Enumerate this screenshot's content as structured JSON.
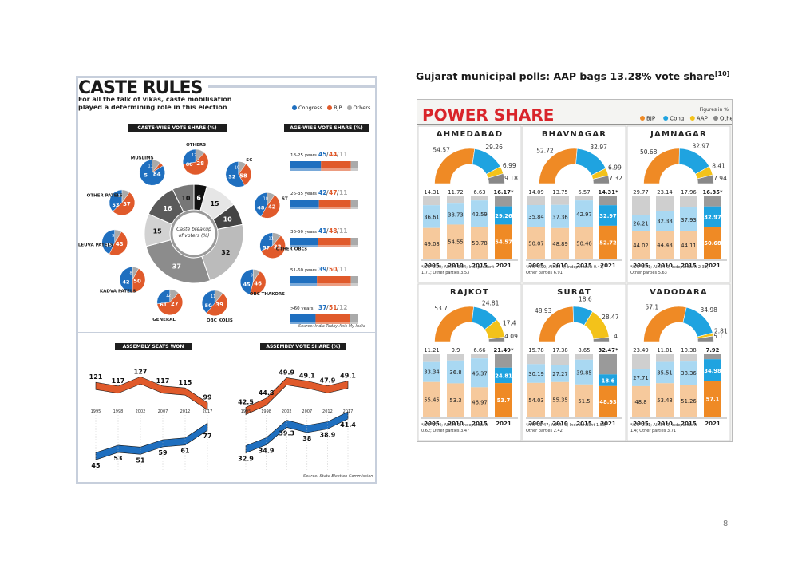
{
  "left": {
    "title": "CASTE RULES",
    "subtitle_lines": [
      "For all the talk of vikas, caste mobilisation",
      "played a determining role in this election"
    ],
    "legend": [
      {
        "label": "Congress",
        "color": "#1f6fbf"
      },
      {
        "label": "BJP",
        "color": "#e05a2b"
      },
      {
        "label": "Others",
        "color": "#aaaaaa"
      }
    ],
    "caste_header": "CASTE-WISE VOTE SHARE (%)",
    "age_header": "AGE-WISE VOTE SHARE (%)",
    "donut_label_lines": [
      "Caste breakup",
      "of voters (%)"
    ],
    "donut_segments": [
      6,
      15,
      10,
      32,
      37,
      15,
      16,
      10
    ],
    "castes": [
      {
        "name": "MUSLIMS",
        "congress": 84,
        "bjp": 5,
        "others": 11
      },
      {
        "name": "OTHERS",
        "congress": 28,
        "bjp": 60,
        "others": 12
      },
      {
        "name": "SC",
        "congress": 58,
        "bjp": 32,
        "others": 10
      },
      {
        "name": "ST",
        "congress": 42,
        "bjp": 48,
        "others": 10
      },
      {
        "name": "OTHER OBCs",
        "congress": 32,
        "bjp": 57,
        "others": 11
      },
      {
        "name": "OBC THAKORS",
        "congress": 46,
        "bjp": 45,
        "others": 9
      },
      {
        "name": "OBC KOLIS",
        "congress": 39,
        "bjp": 50,
        "others": 11
      },
      {
        "name": "GENERAL",
        "congress": 27,
        "bjp": 61,
        "others": 12
      },
      {
        "name": "KADVA PATELS",
        "congress": 50,
        "bjp": 42,
        "others": 8
      },
      {
        "name": "LEUVA PATELS",
        "congress": 43,
        "bjp": 48,
        "others": 9
      },
      {
        "name": "OTHER PATELS",
        "congress": 37,
        "bjp": 53,
        "others": 10
      }
    ],
    "ages": [
      {
        "label": "18-25 years",
        "congress": 45,
        "bjp": 44,
        "others": 11
      },
      {
        "label": "26-35 years",
        "congress": 42,
        "bjp": 47,
        "others": 11
      },
      {
        "label": "36-50 years",
        "congress": 41,
        "bjp": 48,
        "others": 11
      },
      {
        "label": "51-60 years",
        "congress": 39,
        "bjp": 50,
        "others": 11
      },
      {
        "label": ">60 years",
        "congress": 37,
        "bjp": 51,
        "others": 12
      }
    ],
    "source1": "Source: India Today-Axis My India",
    "seats_header": "ASSEMBLY SEATS WON",
    "voteshare_header": "ASSEMBLY VOTE SHARE (%)",
    "years": [
      "1995",
      "1998",
      "2002",
      "2007",
      "2012",
      "2017"
    ],
    "seats_bjp": [
      121,
      117,
      127,
      117,
      115,
      99
    ],
    "seats_congress": [
      45,
      53,
      51,
      59,
      61,
      77
    ],
    "vote_bjp": [
      42.5,
      44.8,
      49.9,
      49.1,
      47.9,
      49.1
    ],
    "vote_congress": [
      32.9,
      34.9,
      39.3,
      38,
      38.9,
      41.4
    ],
    "source2": "Source: State Election Commission"
  },
  "right": {
    "heading": "Gujarat municipal polls: AAP bags 13.28% vote share",
    "heading_ref": "[10]",
    "title": "POWER SHARE",
    "figures_note": "Figures in %",
    "legend": [
      {
        "label": "BJP",
        "color": "#ef8a25"
      },
      {
        "label": "Cong",
        "color": "#1fa3e0"
      },
      {
        "label": "AAP",
        "color": "#f3c21a"
      },
      {
        "label": "Others",
        "color": "#888888"
      }
    ],
    "cities": [
      {
        "name": "AHMEDABAD",
        "arc": [
          54.57,
          29.26,
          6.99,
          9.18
        ],
        "years": [
          "2005",
          "2010",
          "2015",
          "2021"
        ],
        "bjp": [
          49.08,
          54.55,
          50.78,
          54.57
        ],
        "cong": [
          36.61,
          33.73,
          42.59,
          29.26
        ],
        "others": [
          14.31,
          11.72,
          6.63,
          16.17
        ],
        "others_last": "16.17*",
        "note_lines": [
          "*AAP 6.99; AIMIM 3.94; Independent",
          "1.71; Other parties 3.53"
        ]
      },
      {
        "name": "BHAVNAGAR",
        "arc": [
          52.72,
          32.97,
          6.99,
          7.32
        ],
        "years": [
          "2005",
          "2010",
          "2015",
          "2021"
        ],
        "bjp": [
          50.07,
          48.89,
          50.46,
          52.72
        ],
        "cong": [
          35.84,
          37.36,
          42.97,
          32.97
        ],
        "others": [
          14.09,
          13.75,
          6.57,
          14.31
        ],
        "others_last": "14.31*",
        "note_lines": [
          "*AAP 6.99; AIMIM 0; Independent 0.41;",
          "Other parties 6.91"
        ]
      },
      {
        "name": "JAMNAGAR",
        "arc": [
          50.68,
          32.97,
          8.41,
          7.94
        ],
        "years": [
          "2005",
          "2010",
          "2015",
          "2021"
        ],
        "bjp": [
          44.02,
          44.48,
          44.11,
          50.68
        ],
        "cong": [
          26.21,
          32.38,
          37.93,
          32.97
        ],
        "others": [
          29.77,
          23.14,
          17.96,
          16.35
        ],
        "others_last": "16.35*",
        "note_lines": [
          "*AAP 8.41; AIMIM 0; Independent 2.31;",
          "Other parties 5.63"
        ]
      },
      {
        "name": "RAJKOT",
        "arc": [
          53.7,
          24.81,
          17.4,
          4.09
        ],
        "years": [
          "2005",
          "2010",
          "2015",
          "2021"
        ],
        "bjp": [
          55.45,
          53.3,
          46.97,
          53.7
        ],
        "cong": [
          33.34,
          36.8,
          46.37,
          24.81
        ],
        "others": [
          11.21,
          9.9,
          6.66,
          21.49
        ],
        "others_last": "21.49*",
        "note_lines": [
          "*AAP 17.4; AIMIM 0; Independent",
          "0.62; Other parties 3.47"
        ]
      },
      {
        "name": "SURAT",
        "arc": [
          48.93,
          18.6,
          28.47,
          4
        ],
        "years": [
          "2005",
          "2010",
          "2015",
          "2021"
        ],
        "bjp": [
          54.03,
          55.35,
          51.5,
          48.93
        ],
        "cong": [
          30.19,
          27.27,
          39.85,
          18.6
        ],
        "others": [
          15.78,
          17.38,
          8.65,
          32.47
        ],
        "others_last": "32.47*",
        "note_lines": [
          "*AAP 28.47; AIMIM 0; Independent 1.58;",
          "Other parties 2.42"
        ]
      },
      {
        "name": "VADODARA",
        "arc": [
          57.1,
          34.98,
          2.81,
          5.11
        ],
        "years": [
          "2005",
          "2010",
          "2015",
          "2021"
        ],
        "bjp": [
          48.8,
          53.48,
          51.26,
          57.1
        ],
        "cong": [
          27.71,
          35.51,
          38.36,
          34.98
        ],
        "others": [
          23.49,
          11.01,
          10.38,
          7.92
        ],
        "others_last": "7.92",
        "note_lines": [
          "*AAP 2.81; AIMIM 0; Independent",
          "1.4; Other parties 3.71"
        ]
      }
    ]
  },
  "page_number": "8"
}
